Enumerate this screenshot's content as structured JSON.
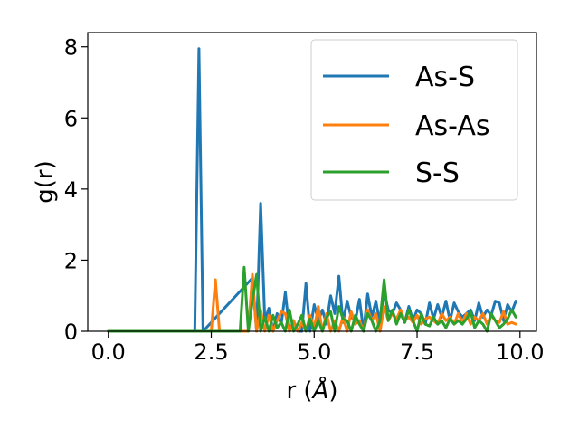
{
  "chart_data": {
    "type": "line",
    "xlabel_main": "r (",
    "xlabel_unit": "Å",
    "xlabel_close": ")",
    "ylabel": "g(r)",
    "xlim": [
      -0.5,
      10.4
    ],
    "ylim": [
      0,
      8.4
    ],
    "xticks": [
      0.0,
      2.5,
      5.0,
      7.5,
      10.0
    ],
    "xtick_labels": [
      "0.0",
      "2.5",
      "5.0",
      "7.5",
      "10.0"
    ],
    "yticks": [
      0,
      2,
      4,
      6,
      8
    ],
    "ytick_labels": [
      "0",
      "2",
      "4",
      "6",
      "8"
    ],
    "legend_position": "upper-right",
    "grid": false,
    "series": [
      {
        "name": "As-S",
        "color": "#1f77b4",
        "x": [
          0.0,
          2.1,
          2.2,
          2.3,
          3.5,
          3.6,
          3.7,
          3.8,
          3.9,
          4.0,
          4.1,
          4.2,
          4.3,
          4.4,
          4.5,
          4.6,
          4.7,
          4.8,
          4.9,
          5.0,
          5.1,
          5.2,
          5.3,
          5.4,
          5.5,
          5.6,
          5.7,
          5.8,
          5.9,
          6.0,
          6.1,
          6.2,
          6.3,
          6.4,
          6.5,
          6.6,
          6.7,
          6.8,
          6.9,
          7.0,
          7.1,
          7.2,
          7.3,
          7.4,
          7.5,
          7.6,
          7.7,
          7.8,
          7.9,
          8.0,
          8.1,
          8.2,
          8.3,
          8.4,
          8.5,
          8.6,
          8.7,
          8.8,
          8.9,
          9.0,
          9.1,
          9.2,
          9.3,
          9.4,
          9.5,
          9.6,
          9.7,
          9.8,
          9.9
        ],
        "y": [
          0.0,
          0.0,
          7.95,
          0.0,
          1.5,
          0.0,
          3.6,
          0.3,
          0.65,
          0.0,
          0.5,
          0.2,
          1.1,
          0.0,
          0.3,
          0.0,
          0.0,
          1.35,
          0.0,
          0.75,
          0.3,
          0.6,
          0.2,
          1.0,
          0.5,
          1.55,
          0.25,
          0.85,
          0.4,
          0.3,
          0.9,
          0.0,
          1.05,
          0.4,
          0.85,
          0.2,
          1.1,
          0.6,
          0.5,
          0.8,
          0.6,
          0.25,
          0.7,
          0.3,
          0.6,
          0.5,
          0.2,
          0.8,
          0.35,
          0.75,
          0.4,
          0.85,
          0.3,
          0.8,
          0.55,
          0.4,
          0.5,
          0.6,
          0.3,
          0.8,
          0.4,
          0.6,
          0.45,
          0.85,
          0.8,
          0.3,
          0.75,
          0.55,
          0.85
        ]
      },
      {
        "name": "As-As",
        "color": "#ff7f0e",
        "x": [
          0.0,
          2.5,
          2.6,
          2.7,
          3.4,
          3.5,
          3.6,
          3.7,
          3.8,
          3.9,
          4.0,
          4.1,
          4.2,
          4.3,
          4.4,
          4.5,
          4.6,
          4.7,
          4.8,
          4.9,
          5.0,
          5.1,
          5.2,
          5.3,
          5.4,
          5.5,
          5.6,
          5.7,
          5.8,
          5.9,
          6.0,
          6.1,
          6.2,
          6.3,
          6.4,
          6.5,
          6.6,
          6.7,
          6.8,
          6.9,
          7.0,
          7.1,
          7.2,
          7.3,
          7.4,
          7.5,
          7.6,
          7.7,
          7.8,
          7.9,
          8.0,
          8.1,
          8.2,
          8.3,
          8.4,
          8.5,
          8.6,
          8.7,
          8.8,
          8.9,
          9.0,
          9.1,
          9.2,
          9.3,
          9.4,
          9.5,
          9.6,
          9.7,
          9.8,
          9.9
        ],
        "y": [
          0.0,
          0.0,
          1.45,
          0.0,
          0.0,
          1.6,
          0.0,
          0.6,
          0.0,
          0.45,
          0.0,
          0.3,
          0.55,
          0.5,
          0.0,
          0.3,
          0.0,
          0.25,
          0.0,
          0.45,
          0.1,
          0.7,
          0.0,
          0.5,
          0.0,
          0.3,
          0.0,
          0.4,
          0.0,
          0.55,
          0.2,
          0.3,
          0.0,
          0.6,
          0.3,
          0.5,
          0.0,
          0.7,
          0.3,
          0.5,
          0.35,
          0.6,
          0.3,
          0.4,
          0.25,
          0.45,
          0.2,
          0.35,
          0.4,
          0.3,
          0.2,
          0.5,
          0.3,
          0.4,
          0.2,
          0.5,
          0.25,
          0.5,
          0.2,
          0.4,
          0.3,
          0.5,
          0.2,
          0.45,
          0.3,
          0.25,
          0.55,
          0.2,
          0.25,
          0.2
        ]
      },
      {
        "name": "S-S",
        "color": "#2ca02c",
        "x": [
          0.0,
          3.2,
          3.3,
          3.4,
          3.5,
          3.6,
          3.7,
          3.8,
          3.9,
          4.0,
          4.1,
          4.2,
          4.3,
          4.4,
          4.5,
          4.6,
          4.7,
          4.8,
          4.9,
          5.0,
          5.1,
          5.2,
          5.3,
          5.4,
          5.5,
          5.6,
          5.7,
          5.8,
          5.9,
          6.0,
          6.1,
          6.2,
          6.3,
          6.4,
          6.5,
          6.6,
          6.7,
          6.8,
          6.9,
          7.0,
          7.1,
          7.2,
          7.3,
          7.4,
          7.5,
          7.6,
          7.7,
          7.8,
          7.9,
          8.0,
          8.1,
          8.2,
          8.3,
          8.4,
          8.5,
          8.6,
          8.7,
          8.8,
          8.9,
          9.0,
          9.1,
          9.2,
          9.3,
          9.4,
          9.5,
          9.6,
          9.7,
          9.8,
          9.9
        ],
        "y": [
          0.0,
          0.0,
          1.8,
          0.0,
          0.85,
          1.6,
          0.0,
          0.4,
          0.0,
          0.45,
          0.1,
          0.25,
          0.0,
          0.6,
          0.0,
          0.2,
          0.45,
          0.0,
          0.35,
          0.0,
          0.3,
          0.0,
          0.4,
          0.55,
          0.0,
          0.7,
          0.35,
          0.3,
          0.0,
          0.45,
          0.2,
          0.0,
          0.5,
          0.3,
          0.0,
          0.3,
          1.45,
          0.3,
          0.6,
          0.2,
          0.5,
          0.25,
          0.6,
          0.3,
          0.0,
          0.5,
          0.2,
          0.15,
          0.4,
          0.2,
          0.3,
          0.1,
          0.35,
          0.2,
          0.3,
          0.2,
          0.35,
          0.55,
          0.1,
          0.3,
          0.2,
          0.0,
          0.5,
          0.3,
          0.1,
          0.2,
          0.35,
          0.6,
          0.4
        ]
      }
    ]
  }
}
